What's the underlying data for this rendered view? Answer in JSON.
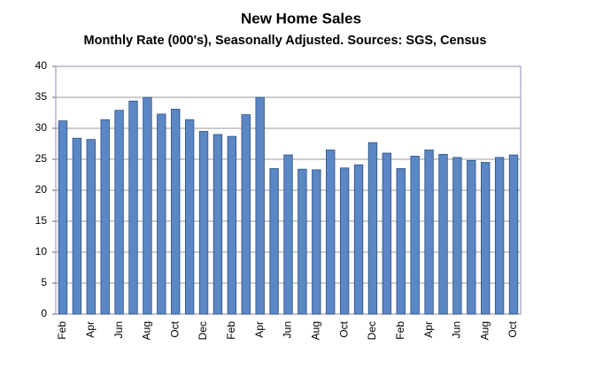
{
  "chart_data": {
    "type": "bar",
    "title": "New Home Sales",
    "subtitle": "Monthly Rate (000's), Seasonally Adjusted.  Sources: SGS, Census",
    "categories": [
      "Feb",
      null,
      "Apr",
      null,
      "Jun",
      null,
      "Aug",
      null,
      "Oct",
      null,
      "Dec",
      null,
      "Feb",
      null,
      "Apr",
      null,
      "Jun",
      null,
      "Aug",
      null,
      "Oct",
      null,
      "Dec",
      null,
      "Feb",
      null,
      "Apr",
      null,
      "Jun",
      null,
      "Aug",
      null,
      "Oct"
    ],
    "values": [
      31.2,
      28.4,
      28.2,
      31.4,
      32.9,
      34.4,
      35,
      32.3,
      33.1,
      31.4,
      29.5,
      29,
      28.7,
      32.2,
      35,
      23.5,
      25.7,
      23.4,
      23.3,
      26.5,
      23.6,
      24.1,
      27.7,
      26,
      23.5,
      25.5,
      26.5,
      25.8,
      25.3,
      24.8,
      24.5,
      25.3,
      25.7
    ],
    "color": "#5b87c5",
    "ylim": [
      0,
      40
    ],
    "yticks": [
      0,
      5,
      10,
      15,
      20,
      25,
      30,
      35,
      40
    ],
    "grid": true
  }
}
